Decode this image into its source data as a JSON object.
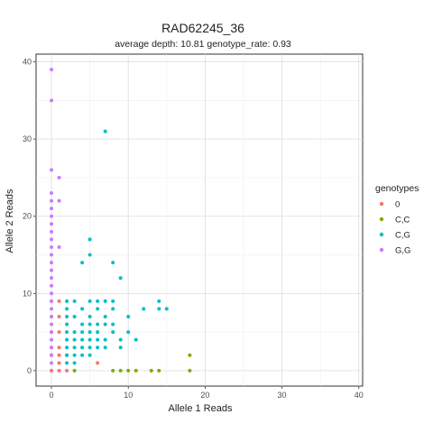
{
  "chart_data": {
    "type": "scatter",
    "title": "RAD62245_36",
    "subtitle": "average depth:  10.81  genotype_rate:  0.93",
    "xlabel": "Allele 1 Reads",
    "ylabel": "Allele 2 Reads",
    "xlim": [
      -2,
      40.5
    ],
    "ylim": [
      -2,
      41
    ],
    "xticks": [
      0,
      10,
      20,
      30,
      40
    ],
    "yticks": [
      0,
      10,
      20,
      30,
      40
    ],
    "grid": true,
    "legend": {
      "title": "genotypes",
      "position": "right",
      "entries": [
        "0",
        "C,C",
        "C,G",
        "G,G"
      ]
    },
    "series": [
      {
        "name": "0",
        "color": "#F8766D",
        "points": [
          [
            0,
            0
          ],
          [
            1,
            0
          ],
          [
            2,
            0
          ],
          [
            1,
            1
          ],
          [
            0,
            2
          ],
          [
            1,
            2
          ],
          [
            0,
            3
          ],
          [
            1,
            3
          ],
          [
            0,
            5
          ],
          [
            1,
            5
          ],
          [
            0,
            7
          ],
          [
            1,
            7
          ],
          [
            0,
            9
          ],
          [
            1,
            9
          ],
          [
            2,
            2
          ],
          [
            6,
            1
          ]
        ]
      },
      {
        "name": "C,C",
        "color": "#7CAE00",
        "points": [
          [
            3,
            0
          ],
          [
            8,
            0
          ],
          [
            9,
            0
          ],
          [
            10,
            0
          ],
          [
            11,
            0
          ],
          [
            13,
            0
          ],
          [
            14,
            0
          ],
          [
            18,
            0
          ],
          [
            18,
            2
          ]
        ]
      },
      {
        "name": "C,G",
        "color": "#00BFC4",
        "points": [
          [
            7,
            31
          ],
          [
            5,
            17
          ],
          [
            5,
            15
          ],
          [
            4,
            14
          ],
          [
            8,
            14
          ],
          [
            9,
            12
          ],
          [
            2,
            9
          ],
          [
            3,
            9
          ],
          [
            5,
            9
          ],
          [
            6,
            9
          ],
          [
            7,
            9
          ],
          [
            8,
            9
          ],
          [
            14,
            9
          ],
          [
            2,
            8
          ],
          [
            4,
            8
          ],
          [
            6,
            8
          ],
          [
            8,
            8
          ],
          [
            12,
            8
          ],
          [
            14,
            8
          ],
          [
            15,
            8
          ],
          [
            2,
            7
          ],
          [
            3,
            7
          ],
          [
            5,
            7
          ],
          [
            7,
            7
          ],
          [
            10,
            7
          ],
          [
            2,
            6
          ],
          [
            4,
            6
          ],
          [
            5,
            6
          ],
          [
            6,
            6
          ],
          [
            7,
            6
          ],
          [
            8,
            6
          ],
          [
            2,
            5
          ],
          [
            3,
            5
          ],
          [
            4,
            5
          ],
          [
            5,
            5
          ],
          [
            6,
            5
          ],
          [
            8,
            5
          ],
          [
            10,
            5
          ],
          [
            2,
            4
          ],
          [
            3,
            4
          ],
          [
            4,
            4
          ],
          [
            5,
            4
          ],
          [
            6,
            4
          ],
          [
            7,
            4
          ],
          [
            9,
            4
          ],
          [
            11,
            4
          ],
          [
            2,
            3
          ],
          [
            3,
            3
          ],
          [
            4,
            3
          ],
          [
            5,
            3
          ],
          [
            6,
            3
          ],
          [
            7,
            3
          ],
          [
            9,
            3
          ],
          [
            2,
            2
          ],
          [
            3,
            2
          ],
          [
            4,
            2
          ],
          [
            5,
            2
          ],
          [
            2,
            1
          ],
          [
            3,
            1
          ]
        ]
      },
      {
        "name": "G,G",
        "color": "#C77CFF",
        "points": [
          [
            0,
            39
          ],
          [
            0,
            35
          ],
          [
            0,
            26
          ],
          [
            1,
            25
          ],
          [
            0,
            23
          ],
          [
            0,
            22
          ],
          [
            1,
            22
          ],
          [
            0,
            21
          ],
          [
            0,
            20
          ],
          [
            0,
            19
          ],
          [
            0,
            18
          ],
          [
            0,
            17
          ],
          [
            0,
            16
          ],
          [
            1,
            16
          ],
          [
            0,
            15
          ],
          [
            0,
            14
          ],
          [
            0,
            13
          ],
          [
            0,
            12
          ],
          [
            0,
            11
          ],
          [
            0,
            10
          ],
          [
            0,
            9
          ],
          [
            0,
            8
          ],
          [
            0,
            7
          ],
          [
            0,
            6
          ],
          [
            0,
            5
          ],
          [
            0,
            4
          ],
          [
            0,
            3
          ],
          [
            0,
            2
          ],
          [
            0,
            1
          ]
        ]
      }
    ]
  }
}
